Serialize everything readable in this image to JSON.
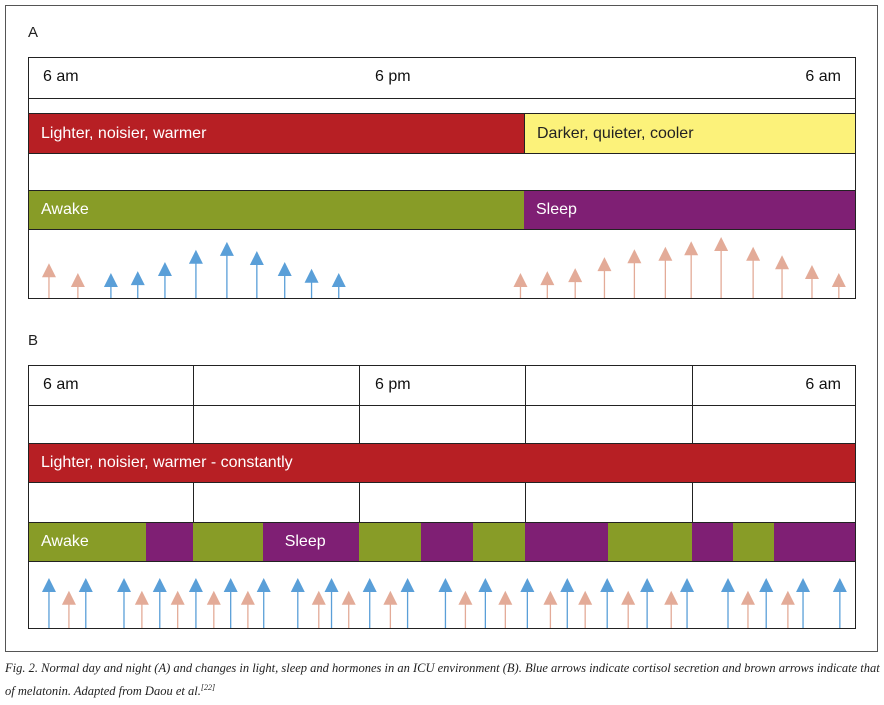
{
  "colors": {
    "red": "#b71f24",
    "yellow": "#fcf27a",
    "green": "#889c27",
    "purple": "#7f1f74",
    "cortisol": "#5a9fd8",
    "melatonin": "#e3ab98"
  },
  "panel_a": {
    "label": "A",
    "times": [
      "6 am",
      "6 pm",
      "6 am"
    ],
    "environment": [
      {
        "label": "Lighter, noisier, warmer"
      },
      {
        "label": "Darker, quieter, cooler"
      }
    ],
    "states": [
      {
        "label": "Awake"
      },
      {
        "label": "Sleep"
      }
    ],
    "arrows": [
      {
        "h": 0.58,
        "level": 0.57,
        "type": "melatonin"
      },
      {
        "h": 1.42,
        "level": 0.41,
        "type": "melatonin"
      },
      {
        "h": 2.38,
        "level": 0.41,
        "type": "cortisol"
      },
      {
        "h": 3.16,
        "level": 0.44,
        "type": "cortisol"
      },
      {
        "h": 3.95,
        "level": 0.59,
        "type": "cortisol"
      },
      {
        "h": 4.85,
        "level": 0.79,
        "type": "cortisol"
      },
      {
        "h": 5.75,
        "level": 0.92,
        "type": "cortisol"
      },
      {
        "h": 6.62,
        "level": 0.77,
        "type": "cortisol"
      },
      {
        "h": 7.43,
        "level": 0.59,
        "type": "cortisol"
      },
      {
        "h": 8.21,
        "level": 0.48,
        "type": "cortisol"
      },
      {
        "h": 9.0,
        "level": 0.41,
        "type": "cortisol"
      },
      {
        "h": 14.28,
        "level": 0.41,
        "type": "melatonin"
      },
      {
        "h": 15.06,
        "level": 0.44,
        "type": "melatonin"
      },
      {
        "h": 15.87,
        "level": 0.49,
        "type": "melatonin"
      },
      {
        "h": 16.72,
        "level": 0.67,
        "type": "melatonin"
      },
      {
        "h": 17.59,
        "level": 0.8,
        "type": "melatonin"
      },
      {
        "h": 18.49,
        "level": 0.84,
        "type": "melatonin"
      },
      {
        "h": 19.24,
        "level": 0.93,
        "type": "melatonin"
      },
      {
        "h": 20.11,
        "level": 1.0,
        "type": "melatonin"
      },
      {
        "h": 21.04,
        "level": 0.84,
        "type": "melatonin"
      },
      {
        "h": 21.88,
        "level": 0.7,
        "type": "melatonin"
      },
      {
        "h": 22.75,
        "level": 0.54,
        "type": "melatonin"
      },
      {
        "h": 23.53,
        "level": 0.41,
        "type": "melatonin"
      }
    ]
  },
  "panel_b": {
    "label": "B",
    "times": [
      "6 am",
      "6 pm",
      "6 am"
    ],
    "environment": "Lighter, noisier, warmer - constantly",
    "dividers_h": [
      4.76,
      9.58,
      14.42,
      19.27
    ],
    "states": [
      {
        "from": 0,
        "to": 3.4,
        "state": "awake",
        "label": "Awake"
      },
      {
        "from": 3.4,
        "to": 4.76,
        "state": "sleep",
        "label": ""
      },
      {
        "from": 4.76,
        "to": 6.79,
        "state": "awake",
        "label": ""
      },
      {
        "from": 6.79,
        "to": 9.58,
        "state": "sleep",
        "label": "Sleep"
      },
      {
        "from": 9.58,
        "to": 11.38,
        "state": "awake",
        "label": ""
      },
      {
        "from": 11.38,
        "to": 12.91,
        "state": "sleep",
        "label": ""
      },
      {
        "from": 12.91,
        "to": 14.42,
        "state": "awake",
        "label": ""
      },
      {
        "from": 14.42,
        "to": 16.83,
        "state": "sleep",
        "label": ""
      },
      {
        "from": 16.83,
        "to": 19.27,
        "state": "awake",
        "label": ""
      },
      {
        "from": 19.27,
        "to": 20.46,
        "state": "sleep",
        "label": ""
      },
      {
        "from": 20.46,
        "to": 21.65,
        "state": "awake",
        "label": ""
      },
      {
        "from": 21.65,
        "to": 24,
        "state": "sleep",
        "label": ""
      }
    ],
    "cortisol_h": [
      0.58,
      1.65,
      2.76,
      3.8,
      4.85,
      5.86,
      6.82,
      7.81,
      8.79,
      9.9,
      11.0,
      12.1,
      13.26,
      14.48,
      15.64,
      16.8,
      17.96,
      19.12,
      20.31,
      21.42,
      22.49,
      23.56
    ],
    "melatonin_h": [
      1.16,
      3.28,
      4.32,
      5.37,
      6.36,
      8.42,
      9.29,
      10.5,
      12.68,
      13.84,
      15.15,
      16.16,
      17.41,
      18.66,
      20.89,
      22.05
    ],
    "cortisol_level": 0.82,
    "melatonin_level": 0.61
  },
  "caption": {
    "text": "Fig. 2. Normal day and night (A) and changes in light, sleep and hormones in an ICU environment (B). Blue arrows indicate cortisol secretion and brown arrows indicate that of melatonin. Adapted from Daou et al.",
    "ref": "[22]"
  }
}
